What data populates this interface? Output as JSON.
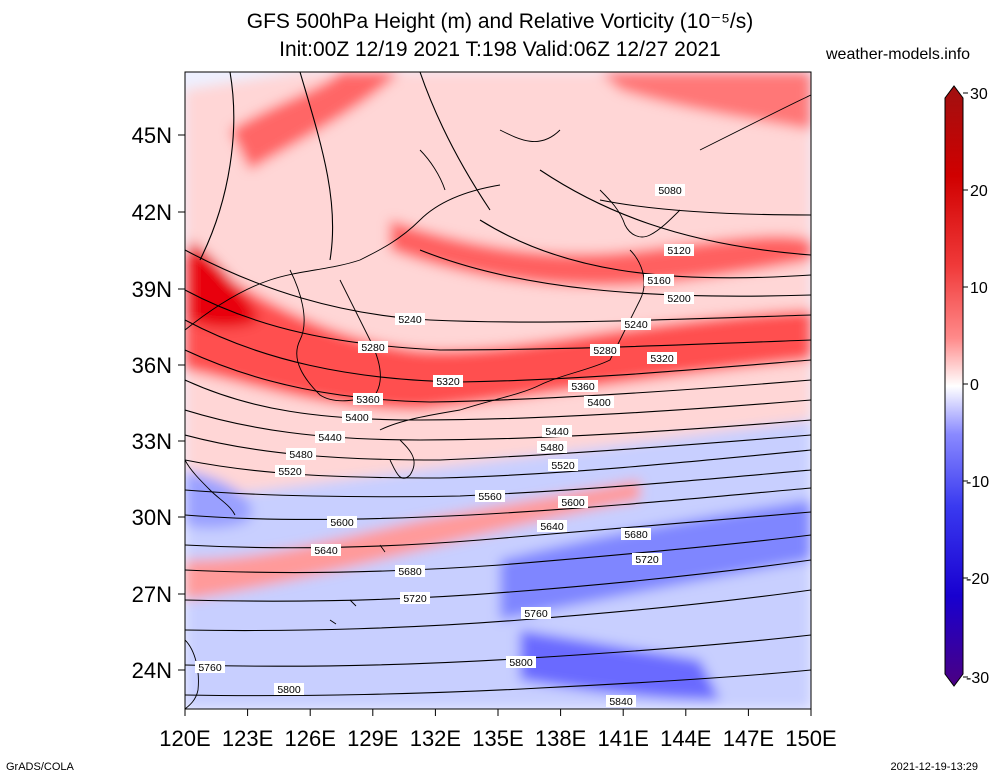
{
  "header": {
    "title_line1": "GFS 500hPa Height (m) and Relative Vorticity (10⁻⁵/s)",
    "title_line2": "Init:00Z 12/19 2021 T:198 Valid:06Z 12/27 2021",
    "site": "weather-models.info"
  },
  "map": {
    "lon_labels": [
      "120E",
      "123E",
      "126E",
      "129E",
      "132E",
      "135E",
      "138E",
      "141E",
      "144E",
      "147E",
      "150E"
    ],
    "lat_labels": [
      "45N",
      "42N",
      "39N",
      "36N",
      "33N",
      "30N",
      "27N",
      "24N"
    ],
    "contour_labels": [
      "5080",
      "5120",
      "5160",
      "5200",
      "5240",
      "5280",
      "5320",
      "5360",
      "5400",
      "5440",
      "5480",
      "5520",
      "5560",
      "5600",
      "5640",
      "5680",
      "5720",
      "5760",
      "5800",
      "5840"
    ],
    "colors": {
      "strong_pos": "#e8000a",
      "pos": "#ff8a8a",
      "neutral": "#ffffff",
      "neg": "#8a8aff",
      "strong_neg": "#1a00d0"
    }
  },
  "colorbar": {
    "ticks": [
      "30",
      "20",
      "10",
      "0",
      "-10",
      "-20",
      "-30"
    ],
    "colors": [
      "#4b0082",
      "#1800d0",
      "#3a3af0",
      "#8a8aff",
      "#d0d0ff",
      "#ffffff",
      "#ffd0d0",
      "#ff8a8a",
      "#f03a3a",
      "#d00000",
      "#a01010"
    ]
  },
  "footer": {
    "left": "GrADS/COLA",
    "right": "2021-12-19-13:29"
  }
}
